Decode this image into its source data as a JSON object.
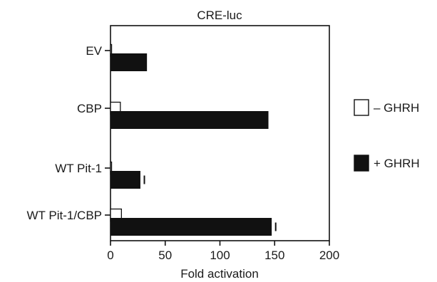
{
  "chart_data": {
    "type": "bar",
    "orientation": "horizontal",
    "title": "CRE-luc",
    "xlabel": "Fold activation",
    "ylabel": "",
    "xlim": [
      0,
      200
    ],
    "xticks": [
      0,
      50,
      100,
      150,
      200
    ],
    "categories": [
      "EV",
      "CBP",
      "WT Pit-1",
      "WT Pit-1/CBP"
    ],
    "series": [
      {
        "name": "– GHRH",
        "fill": "#ffffff",
        "values": [
          1,
          9,
          1,
          10
        ],
        "errors": [
          0,
          0,
          0,
          0
        ]
      },
      {
        "name": "+ GHRH",
        "fill": "#111111",
        "values": [
          33,
          144,
          27,
          147
        ],
        "errors": [
          0,
          0,
          2,
          2
        ]
      }
    ],
    "grid": false,
    "legend_position": "right"
  }
}
